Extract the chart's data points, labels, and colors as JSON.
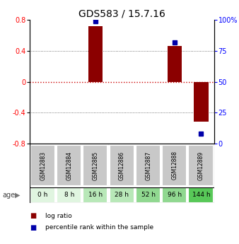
{
  "title": "GDS583 / 15.7.16",
  "samples": [
    "GSM12883",
    "GSM12884",
    "GSM12885",
    "GSM12886",
    "GSM12887",
    "GSM12888",
    "GSM12889"
  ],
  "ages": [
    "0 h",
    "8 h",
    "16 h",
    "28 h",
    "52 h",
    "96 h",
    "144 h"
  ],
  "log_ratios": [
    0.0,
    0.0,
    0.72,
    0.0,
    0.0,
    0.46,
    -0.52
  ],
  "percentile_ranks": [
    null,
    null,
    99,
    null,
    null,
    82,
    8
  ],
  "ylim": [
    -0.8,
    0.8
  ],
  "yticks_left": [
    -0.8,
    -0.4,
    0,
    0.4,
    0.8
  ],
  "yticks_right": [
    0,
    25,
    50,
    75,
    100
  ],
  "bar_color": "#8B0000",
  "dot_color": "#0000AA",
  "title_fontsize": 10,
  "age_colors": [
    "#e0f5e0",
    "#e0f5e0",
    "#b8e8b8",
    "#b8e8b8",
    "#90d890",
    "#90d890",
    "#58c858"
  ],
  "sample_bg": "#c8c8c8",
  "zero_line_color": "#cc0000",
  "grid_color": "#555555",
  "age_label": "age",
  "legend_items": [
    {
      "color": "#8B0000",
      "label": "log ratio"
    },
    {
      "color": "#0000AA",
      "label": "percentile rank within the sample"
    }
  ]
}
